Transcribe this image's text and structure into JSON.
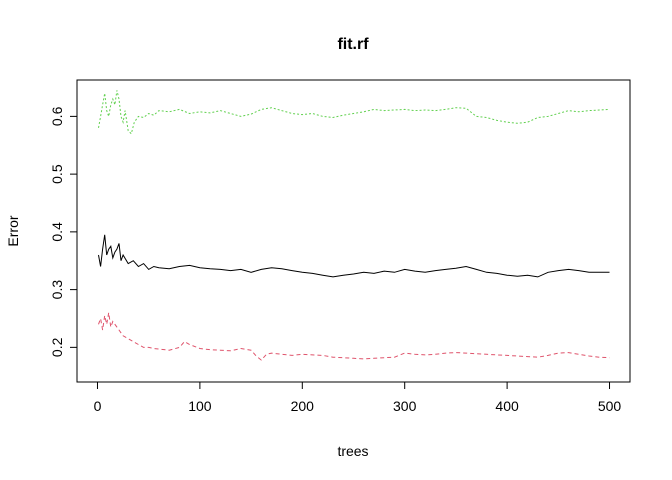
{
  "chart_data": {
    "type": "line",
    "title": "fit.rf",
    "xlabel": "trees",
    "ylabel": "Error",
    "xlim": [
      -20,
      520
    ],
    "ylim": [
      0.14,
      0.663
    ],
    "xticks": [
      0,
      100,
      200,
      300,
      400,
      500
    ],
    "yticks": [
      0.2,
      0.3,
      0.4,
      0.5,
      0.6
    ],
    "grid": false,
    "legend": "none",
    "series": [
      {
        "color": "#000000",
        "dash": "solid",
        "points": [
          [
            1,
            0.36
          ],
          [
            3,
            0.34
          ],
          [
            5,
            0.37
          ],
          [
            7,
            0.395
          ],
          [
            9,
            0.36
          ],
          [
            11,
            0.37
          ],
          [
            13,
            0.375
          ],
          [
            15,
            0.355
          ],
          [
            17,
            0.365
          ],
          [
            19,
            0.37
          ],
          [
            21,
            0.38
          ],
          [
            23,
            0.35
          ],
          [
            25,
            0.36
          ],
          [
            30,
            0.345
          ],
          [
            35,
            0.35
          ],
          [
            40,
            0.34
          ],
          [
            45,
            0.345
          ],
          [
            50,
            0.335
          ],
          [
            55,
            0.34
          ],
          [
            60,
            0.338
          ],
          [
            70,
            0.336
          ],
          [
            80,
            0.34
          ],
          [
            90,
            0.342
          ],
          [
            100,
            0.338
          ],
          [
            110,
            0.336
          ],
          [
            120,
            0.335
          ],
          [
            130,
            0.333
          ],
          [
            140,
            0.335
          ],
          [
            150,
            0.33
          ],
          [
            160,
            0.335
          ],
          [
            170,
            0.338
          ],
          [
            180,
            0.336
          ],
          [
            190,
            0.333
          ],
          [
            200,
            0.33
          ],
          [
            210,
            0.328
          ],
          [
            220,
            0.325
          ],
          [
            230,
            0.322
          ],
          [
            240,
            0.325
          ],
          [
            250,
            0.327
          ],
          [
            260,
            0.33
          ],
          [
            270,
            0.328
          ],
          [
            280,
            0.332
          ],
          [
            290,
            0.33
          ],
          [
            300,
            0.335
          ],
          [
            310,
            0.332
          ],
          [
            320,
            0.33
          ],
          [
            330,
            0.333
          ],
          [
            340,
            0.335
          ],
          [
            350,
            0.337
          ],
          [
            360,
            0.34
          ],
          [
            370,
            0.335
          ],
          [
            380,
            0.33
          ],
          [
            390,
            0.328
          ],
          [
            400,
            0.325
          ],
          [
            410,
            0.323
          ],
          [
            420,
            0.325
          ],
          [
            430,
            0.322
          ],
          [
            440,
            0.33
          ],
          [
            450,
            0.333
          ],
          [
            460,
            0.335
          ],
          [
            470,
            0.333
          ],
          [
            480,
            0.33
          ],
          [
            490,
            0.33
          ],
          [
            500,
            0.33
          ]
        ]
      },
      {
        "color": "#DF536B",
        "dash": "4,3",
        "points": [
          [
            1,
            0.24
          ],
          [
            3,
            0.25
          ],
          [
            5,
            0.23
          ],
          [
            7,
            0.255
          ],
          [
            9,
            0.24
          ],
          [
            11,
            0.26
          ],
          [
            13,
            0.235
          ],
          [
            15,
            0.245
          ],
          [
            17,
            0.24
          ],
          [
            19,
            0.235
          ],
          [
            21,
            0.23
          ],
          [
            25,
            0.22
          ],
          [
            30,
            0.215
          ],
          [
            35,
            0.21
          ],
          [
            40,
            0.205
          ],
          [
            45,
            0.2
          ],
          [
            50,
            0.2
          ],
          [
            55,
            0.198
          ],
          [
            60,
            0.197
          ],
          [
            70,
            0.195
          ],
          [
            80,
            0.2
          ],
          [
            85,
            0.21
          ],
          [
            90,
            0.205
          ],
          [
            100,
            0.198
          ],
          [
            110,
            0.196
          ],
          [
            120,
            0.195
          ],
          [
            130,
            0.194
          ],
          [
            140,
            0.198
          ],
          [
            150,
            0.195
          ],
          [
            155,
            0.185
          ],
          [
            160,
            0.178
          ],
          [
            165,
            0.188
          ],
          [
            170,
            0.19
          ],
          [
            180,
            0.188
          ],
          [
            190,
            0.186
          ],
          [
            200,
            0.188
          ],
          [
            210,
            0.187
          ],
          [
            220,
            0.186
          ],
          [
            230,
            0.183
          ],
          [
            240,
            0.182
          ],
          [
            250,
            0.181
          ],
          [
            260,
            0.18
          ],
          [
            270,
            0.181
          ],
          [
            280,
            0.182
          ],
          [
            290,
            0.183
          ],
          [
            300,
            0.19
          ],
          [
            310,
            0.188
          ],
          [
            320,
            0.187
          ],
          [
            330,
            0.188
          ],
          [
            340,
            0.19
          ],
          [
            350,
            0.191
          ],
          [
            360,
            0.19
          ],
          [
            370,
            0.189
          ],
          [
            380,
            0.188
          ],
          [
            390,
            0.187
          ],
          [
            400,
            0.186
          ],
          [
            410,
            0.185
          ],
          [
            420,
            0.184
          ],
          [
            430,
            0.183
          ],
          [
            440,
            0.186
          ],
          [
            450,
            0.19
          ],
          [
            460,
            0.191
          ],
          [
            470,
            0.188
          ],
          [
            480,
            0.185
          ],
          [
            490,
            0.183
          ],
          [
            500,
            0.182
          ]
        ]
      },
      {
        "color": "#61D04F",
        "dash": "2,2",
        "points": [
          [
            1,
            0.58
          ],
          [
            3,
            0.6
          ],
          [
            5,
            0.62
          ],
          [
            7,
            0.64
          ],
          [
            9,
            0.61
          ],
          [
            11,
            0.6
          ],
          [
            13,
            0.62
          ],
          [
            15,
            0.63
          ],
          [
            17,
            0.62
          ],
          [
            19,
            0.645
          ],
          [
            21,
            0.63
          ],
          [
            23,
            0.6
          ],
          [
            25,
            0.59
          ],
          [
            27,
            0.61
          ],
          [
            30,
            0.575
          ],
          [
            33,
            0.57
          ],
          [
            36,
            0.59
          ],
          [
            40,
            0.6
          ],
          [
            45,
            0.598
          ],
          [
            50,
            0.605
          ],
          [
            55,
            0.602
          ],
          [
            60,
            0.61
          ],
          [
            70,
            0.608
          ],
          [
            80,
            0.612
          ],
          [
            90,
            0.605
          ],
          [
            100,
            0.608
          ],
          [
            110,
            0.606
          ],
          [
            120,
            0.61
          ],
          [
            130,
            0.605
          ],
          [
            140,
            0.6
          ],
          [
            150,
            0.604
          ],
          [
            160,
            0.612
          ],
          [
            170,
            0.615
          ],
          [
            180,
            0.61
          ],
          [
            190,
            0.605
          ],
          [
            200,
            0.603
          ],
          [
            210,
            0.605
          ],
          [
            220,
            0.6
          ],
          [
            230,
            0.598
          ],
          [
            240,
            0.602
          ],
          [
            250,
            0.605
          ],
          [
            260,
            0.608
          ],
          [
            270,
            0.612
          ],
          [
            280,
            0.61
          ],
          [
            290,
            0.611
          ],
          [
            300,
            0.612
          ],
          [
            310,
            0.61
          ],
          [
            320,
            0.611
          ],
          [
            330,
            0.61
          ],
          [
            340,
            0.612
          ],
          [
            350,
            0.615
          ],
          [
            360,
            0.614
          ],
          [
            370,
            0.6
          ],
          [
            380,
            0.598
          ],
          [
            390,
            0.593
          ],
          [
            400,
            0.59
          ],
          [
            410,
            0.588
          ],
          [
            420,
            0.59
          ],
          [
            430,
            0.598
          ],
          [
            440,
            0.6
          ],
          [
            450,
            0.605
          ],
          [
            460,
            0.61
          ],
          [
            470,
            0.608
          ],
          [
            480,
            0.61
          ],
          [
            490,
            0.611
          ],
          [
            500,
            0.612
          ]
        ]
      }
    ]
  }
}
